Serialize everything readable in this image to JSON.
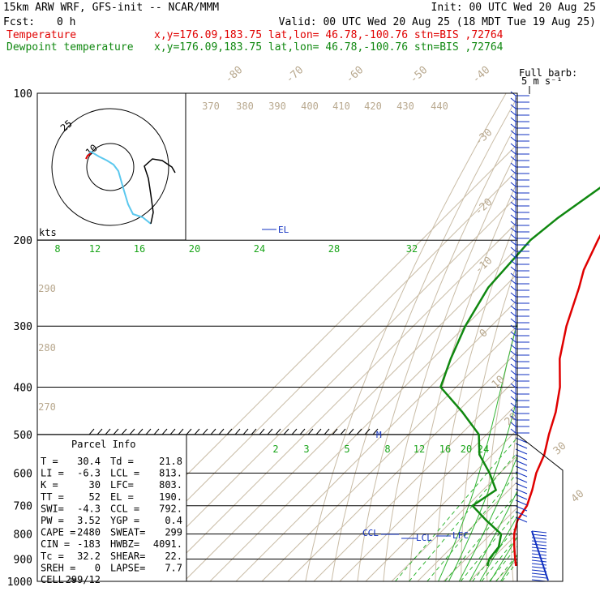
{
  "header": {
    "model": "15km ARW WRF, GFS-init  -- NCAR/MMM",
    "init": "Init: 00 UTC Wed 20 Aug 25",
    "fcst_label": "Fcst:",
    "fcst_value": "0 h",
    "valid": "Valid: 00 UTC Wed 20 Aug 25 (18 MDT Tue 19 Aug 25)",
    "temp_label": "Temperature",
    "temp_info": "x,y=176.09,183.75   lat,lon= 46.78,-100.76  stn=BIS ,72764",
    "dew_label": "Dewpoint temperature",
    "dew_info": "x,y=176.09,183.75   lat,lon= 46.78,-100.76  stn=BIS ,72764"
  },
  "barb_legend": {
    "line1": "Full barb:",
    "line2": "5 m s⁻¹"
  },
  "hodograph": {
    "ring_labels": [
      "25",
      "10"
    ],
    "units": "kts"
  },
  "parcel_info": {
    "title": "Parcel Info",
    "rows": [
      [
        "T  =",
        "30.4",
        "Td =",
        "21.8"
      ],
      [
        "LI =",
        "-6.3",
        "LCL =",
        "813."
      ],
      [
        "K  =",
        "30",
        "LFC=",
        "803."
      ],
      [
        "TT =",
        "52",
        "EL =",
        "190."
      ],
      [
        "SWI=",
        "-4.3",
        "CCL =",
        "792."
      ],
      [
        "PW =",
        "3.52",
        "YGP =",
        "0.4"
      ],
      [
        "CAPE =",
        "2480",
        "SWEAT=",
        "299"
      ],
      [
        "CIN =",
        "-183",
        "HWBZ=",
        "4091."
      ],
      [
        "Tc =",
        "32.2",
        "SHEAR=",
        "22."
      ],
      [
        "SREH =",
        "0",
        "LAPSE=",
        "7.7"
      ],
      [
        "CELL =",
        "299/12",
        "",
        ""
      ]
    ]
  },
  "level_labels": {
    "el": "EL",
    "ccl": "CCL",
    "lcl": "LCL",
    "lfc": "LFC",
    "m": "M"
  },
  "chart_data": {
    "type": "line",
    "title": "15km ARW WRF, GFS-init  -- NCAR/MMM",
    "pressure_levels": [
      100,
      200,
      300,
      400,
      500,
      600,
      700,
      800,
      900,
      1000
    ],
    "isotherm_labels": [
      "-80",
      "-70",
      "-60",
      "-50",
      "-40",
      "-30",
      "-20",
      "-10",
      "0",
      "10",
      "20",
      "30",
      "40"
    ],
    "theta_labels": [
      "370",
      "380",
      "390",
      "400",
      "410",
      "420",
      "430",
      "440",
      "290",
      "280",
      "270"
    ],
    "mixing_ratio_labels_upper": [
      "8",
      "12",
      "16",
      "20",
      "24",
      "28",
      "32"
    ],
    "mixing_ratio_labels_lower": [
      "2",
      "3",
      "5",
      "8",
      "12",
      "16",
      "20",
      "24"
    ],
    "series": [
      {
        "name": "Temperature",
        "color": "#e00000",
        "points": [
          [
            100,
            -60
          ],
          [
            120,
            -62
          ],
          [
            150,
            -65
          ],
          [
            180,
            -66
          ],
          [
            200,
            -62
          ],
          [
            230,
            -56
          ],
          [
            250,
            -51
          ],
          [
            300,
            -41
          ],
          [
            350,
            -31
          ],
          [
            400,
            -20
          ],
          [
            450,
            -12
          ],
          [
            500,
            -6
          ],
          [
            550,
            0
          ],
          [
            600,
            4
          ],
          [
            650,
            9
          ],
          [
            700,
            13
          ],
          [
            750,
            15
          ],
          [
            800,
            19
          ],
          [
            850,
            24
          ],
          [
            900,
            29
          ],
          [
            930,
            32
          ]
        ]
      },
      {
        "name": "Dewpoint temperature",
        "color": "#108810",
        "points": [
          [
            100,
            -75
          ],
          [
            120,
            -77
          ],
          [
            150,
            -80
          ],
          [
            180,
            -86
          ],
          [
            200,
            -88
          ],
          [
            250,
            -86
          ],
          [
            300,
            -80
          ],
          [
            350,
            -73
          ],
          [
            400,
            -66
          ],
          [
            450,
            -48
          ],
          [
            500,
            -33
          ],
          [
            550,
            -25
          ],
          [
            600,
            -14
          ],
          [
            650,
            -5
          ],
          [
            700,
            -8
          ],
          [
            750,
            3
          ],
          [
            800,
            14
          ],
          [
            850,
            18
          ],
          [
            900,
            19
          ],
          [
            930,
            21
          ]
        ]
      }
    ]
  }
}
